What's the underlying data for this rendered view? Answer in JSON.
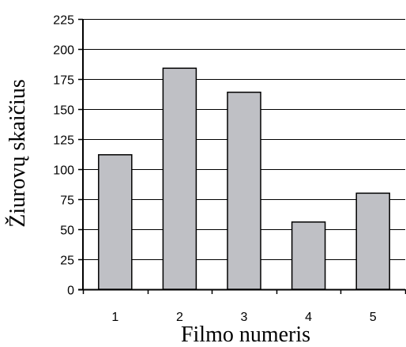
{
  "chart_data": {
    "type": "bar",
    "categories": [
      "1",
      "2",
      "3",
      "4",
      "5"
    ],
    "values": [
      112,
      184,
      164,
      56,
      80
    ],
    "title": "",
    "xlabel": "Filmo numeris",
    "ylabel": "Žiurovų skaičius",
    "ylim": [
      0,
      225
    ],
    "yticks": [
      "0",
      "25",
      "50",
      "75",
      "100",
      "125",
      "150",
      "175",
      "200",
      "225"
    ],
    "grid": true,
    "bar_color": "#bfc0c5",
    "bar_edge_color": "#000000",
    "grid_color": "#000000"
  }
}
